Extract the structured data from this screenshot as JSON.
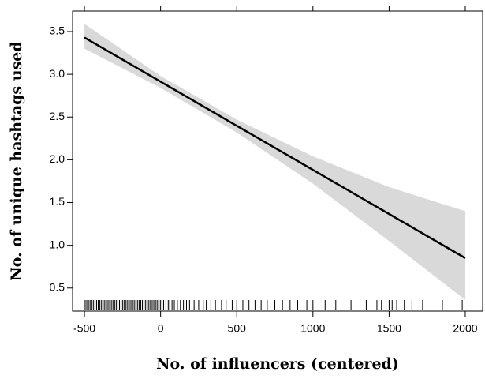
{
  "chart_data": {
    "type": "line",
    "xlabel": "No. of influencers (centered)",
    "ylabel": "No. of unique hashtags used",
    "x": [
      -500,
      0,
      500,
      1000,
      1500,
      2000
    ],
    "values": [
      3.43,
      2.914,
      2.398,
      1.882,
      1.366,
      0.85
    ],
    "lower": [
      3.3,
      2.84,
      2.32,
      1.72,
      1.05,
      0.36
    ],
    "upper": [
      3.59,
      2.98,
      2.47,
      2.04,
      1.68,
      1.4
    ],
    "color": "#000000",
    "band_color": "#d9d9d9",
    "rug": [
      -500,
      -490,
      -480,
      -470,
      -460,
      -450,
      -440,
      -430,
      -420,
      -410,
      -400,
      -390,
      -380,
      -370,
      -360,
      -350,
      -340,
      -330,
      -320,
      -310,
      -300,
      -290,
      -280,
      -270,
      -260,
      -250,
      -240,
      -230,
      -220,
      -210,
      -200,
      -190,
      -180,
      -170,
      -160,
      -150,
      -140,
      -130,
      -120,
      -110,
      -100,
      -90,
      -80,
      -70,
      -60,
      -50,
      -40,
      -30,
      -20,
      -10,
      0,
      10,
      20,
      35,
      50,
      60,
      75,
      90,
      110,
      130,
      150,
      170,
      190,
      220,
      250,
      280,
      300,
      330,
      360,
      400,
      430,
      470,
      500,
      540,
      580,
      620,
      660,
      700,
      750,
      800,
      850,
      900,
      960,
      1000,
      1080,
      1150,
      1250,
      1350,
      1420,
      1450,
      1480,
      1500,
      1520,
      1550,
      1600,
      1650,
      1720,
      1850,
      1980
    ],
    "xlim": [
      -578,
      2114
    ],
    "ylim": [
      0.23,
      3.74
    ],
    "xticks": [
      -500,
      0,
      500,
      1000,
      1500,
      2000
    ],
    "yticks": [
      0.5,
      {
        "value": 1,
        "label": "1.0"
      },
      1.5,
      {
        "value": 2,
        "label": "2.0"
      },
      2.5,
      {
        "value": 3,
        "label": "3.0"
      },
      3.5
    ]
  }
}
